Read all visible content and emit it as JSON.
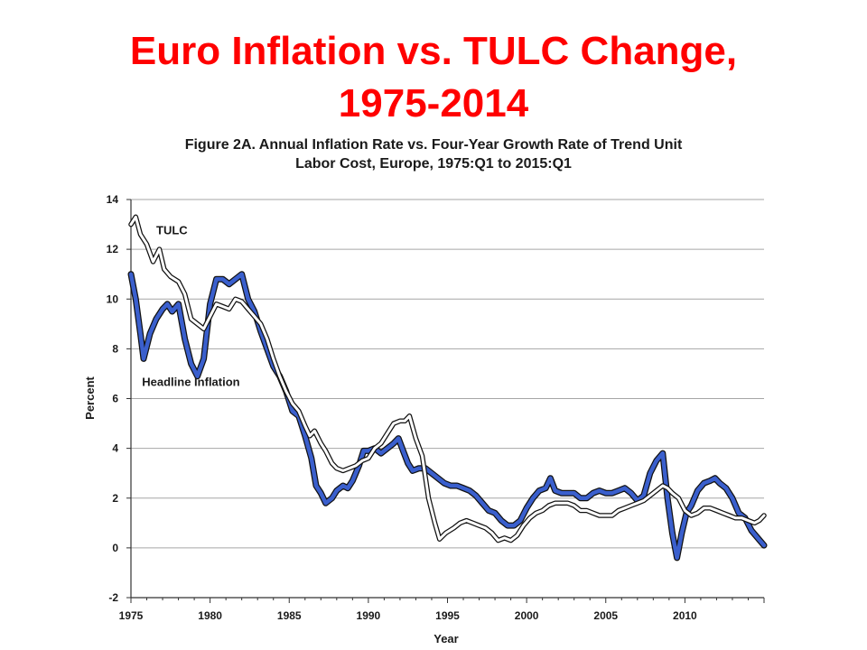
{
  "slide": {
    "title_line1": "Euro Inflation vs. TULC Change,",
    "title_line2": "1975-2014"
  },
  "chart_data": {
    "type": "line",
    "title": "Figure 2A. Annual Inflation Rate vs. Four-Year Growth Rate of Trend Unit Labor Cost, Europe, 1975:Q1 to 2015:Q1",
    "title_line1": "Figure 2A. Annual Inflation Rate vs. Four-Year Growth Rate of Trend Unit",
    "title_line2": "Labor Cost, Europe, 1975:Q1 to 2015:Q1",
    "xlabel": "Year",
    "ylabel": "Percent",
    "xlim": [
      1975,
      2015
    ],
    "ylim": [
      -2,
      14
    ],
    "x_ticks": [
      1975,
      1980,
      1985,
      1990,
      1995,
      2000,
      2005,
      2010
    ],
    "y_ticks": [
      -2,
      0,
      2,
      4,
      6,
      8,
      10,
      12,
      14
    ],
    "grid": "horizontal",
    "annotations": [
      {
        "text": "TULC",
        "series": "TULC",
        "x": 1976.6,
        "y": 12.6
      },
      {
        "text": "Headline Inflation",
        "series": "Headline Inflation",
        "x": 1975.7,
        "y": 6.5
      }
    ],
    "series": [
      {
        "name": "Headline Inflation",
        "color": "#3a5fcd",
        "style": "thick blue line with black outline",
        "points": [
          [
            1975.0,
            11.0
          ],
          [
            1975.3,
            10.0
          ],
          [
            1975.6,
            8.6
          ],
          [
            1975.8,
            7.6
          ],
          [
            1976.2,
            8.6
          ],
          [
            1976.6,
            9.2
          ],
          [
            1977.0,
            9.6
          ],
          [
            1977.3,
            9.8
          ],
          [
            1977.6,
            9.5
          ],
          [
            1978.0,
            9.8
          ],
          [
            1978.4,
            8.4
          ],
          [
            1978.8,
            7.4
          ],
          [
            1979.2,
            6.9
          ],
          [
            1979.6,
            7.6
          ],
          [
            1980.0,
            9.8
          ],
          [
            1980.4,
            10.8
          ],
          [
            1980.8,
            10.8
          ],
          [
            1981.2,
            10.6
          ],
          [
            1981.6,
            10.8
          ],
          [
            1982.0,
            11.0
          ],
          [
            1982.4,
            10.0
          ],
          [
            1982.8,
            9.5
          ],
          [
            1983.2,
            8.7
          ],
          [
            1983.6,
            8.0
          ],
          [
            1984.0,
            7.3
          ],
          [
            1984.4,
            6.9
          ],
          [
            1984.8,
            6.3
          ],
          [
            1985.2,
            5.5
          ],
          [
            1985.6,
            5.3
          ],
          [
            1986.0,
            4.5
          ],
          [
            1986.4,
            3.6
          ],
          [
            1986.7,
            2.5
          ],
          [
            1987.0,
            2.2
          ],
          [
            1987.3,
            1.8
          ],
          [
            1987.7,
            2.0
          ],
          [
            1988.0,
            2.3
          ],
          [
            1988.4,
            2.5
          ],
          [
            1988.7,
            2.4
          ],
          [
            1989.0,
            2.7
          ],
          [
            1989.4,
            3.3
          ],
          [
            1989.7,
            3.9
          ],
          [
            1990.0,
            3.9
          ],
          [
            1990.4,
            4.0
          ],
          [
            1990.8,
            3.8
          ],
          [
            1991.2,
            4.0
          ],
          [
            1991.6,
            4.2
          ],
          [
            1991.9,
            4.4
          ],
          [
            1992.2,
            3.9
          ],
          [
            1992.5,
            3.4
          ],
          [
            1992.8,
            3.1
          ],
          [
            1993.2,
            3.2
          ],
          [
            1993.6,
            3.2
          ],
          [
            1994.0,
            3.0
          ],
          [
            1994.4,
            2.8
          ],
          [
            1994.8,
            2.6
          ],
          [
            1995.2,
            2.5
          ],
          [
            1995.6,
            2.5
          ],
          [
            1996.0,
            2.4
          ],
          [
            1996.4,
            2.3
          ],
          [
            1996.8,
            2.1
          ],
          [
            1997.2,
            1.8
          ],
          [
            1997.6,
            1.5
          ],
          [
            1998.0,
            1.4
          ],
          [
            1998.4,
            1.1
          ],
          [
            1998.8,
            0.9
          ],
          [
            1999.2,
            0.9
          ],
          [
            1999.6,
            1.1
          ],
          [
            2000.0,
            1.6
          ],
          [
            2000.4,
            2.0
          ],
          [
            2000.8,
            2.3
          ],
          [
            2001.2,
            2.4
          ],
          [
            2001.5,
            2.8
          ],
          [
            2001.8,
            2.3
          ],
          [
            2002.2,
            2.2
          ],
          [
            2002.6,
            2.2
          ],
          [
            2003.0,
            2.2
          ],
          [
            2003.4,
            2.0
          ],
          [
            2003.8,
            2.0
          ],
          [
            2004.2,
            2.2
          ],
          [
            2004.6,
            2.3
          ],
          [
            2005.0,
            2.2
          ],
          [
            2005.4,
            2.2
          ],
          [
            2005.8,
            2.3
          ],
          [
            2006.2,
            2.4
          ],
          [
            2006.6,
            2.2
          ],
          [
            2007.0,
            1.9
          ],
          [
            2007.4,
            2.1
          ],
          [
            2007.8,
            3.0
          ],
          [
            2008.2,
            3.5
          ],
          [
            2008.6,
            3.8
          ],
          [
            2008.9,
            2.0
          ],
          [
            2009.2,
            0.6
          ],
          [
            2009.5,
            -0.4
          ],
          [
            2009.8,
            0.6
          ],
          [
            2010.1,
            1.4
          ],
          [
            2010.4,
            1.7
          ],
          [
            2010.8,
            2.3
          ],
          [
            2011.2,
            2.6
          ],
          [
            2011.6,
            2.7
          ],
          [
            2011.9,
            2.8
          ],
          [
            2012.2,
            2.6
          ],
          [
            2012.6,
            2.4
          ],
          [
            2013.0,
            2.0
          ],
          [
            2013.4,
            1.4
          ],
          [
            2013.8,
            1.2
          ],
          [
            2014.2,
            0.7
          ],
          [
            2014.6,
            0.4
          ],
          [
            2015.0,
            0.1
          ]
        ]
      },
      {
        "name": "TULC",
        "color": "#ffffff",
        "style": "white line with black outline",
        "points": [
          [
            1975.0,
            13.0
          ],
          [
            1975.3,
            13.3
          ],
          [
            1975.6,
            12.6
          ],
          [
            1976.0,
            12.2
          ],
          [
            1976.4,
            11.5
          ],
          [
            1976.8,
            12.0
          ],
          [
            1977.1,
            11.2
          ],
          [
            1977.5,
            10.9
          ],
          [
            1978.0,
            10.7
          ],
          [
            1978.4,
            10.2
          ],
          [
            1978.8,
            9.2
          ],
          [
            1979.2,
            9.0
          ],
          [
            1979.6,
            8.8
          ],
          [
            1980.0,
            9.3
          ],
          [
            1980.4,
            9.8
          ],
          [
            1980.8,
            9.7
          ],
          [
            1981.2,
            9.6
          ],
          [
            1981.6,
            10.0
          ],
          [
            1982.0,
            9.9
          ],
          [
            1982.4,
            9.6
          ],
          [
            1982.8,
            9.3
          ],
          [
            1983.2,
            9.0
          ],
          [
            1983.6,
            8.4
          ],
          [
            1984.0,
            7.6
          ],
          [
            1984.4,
            6.9
          ],
          [
            1984.8,
            6.3
          ],
          [
            1985.2,
            5.8
          ],
          [
            1985.6,
            5.5
          ],
          [
            1986.0,
            4.9
          ],
          [
            1986.3,
            4.5
          ],
          [
            1986.6,
            4.7
          ],
          [
            1987.0,
            4.2
          ],
          [
            1987.3,
            3.9
          ],
          [
            1987.7,
            3.4
          ],
          [
            1988.0,
            3.2
          ],
          [
            1988.4,
            3.1
          ],
          [
            1988.8,
            3.2
          ],
          [
            1989.2,
            3.3
          ],
          [
            1989.6,
            3.5
          ],
          [
            1990.0,
            3.6
          ],
          [
            1990.4,
            4.0
          ],
          [
            1990.8,
            4.2
          ],
          [
            1991.2,
            4.6
          ],
          [
            1991.6,
            5.0
          ],
          [
            1992.0,
            5.1
          ],
          [
            1992.3,
            5.1
          ],
          [
            1992.6,
            5.3
          ],
          [
            1993.0,
            4.4
          ],
          [
            1993.4,
            3.7
          ],
          [
            1993.8,
            2.0
          ],
          [
            1994.2,
            1.0
          ],
          [
            1994.5,
            0.35
          ],
          [
            1994.9,
            0.6
          ],
          [
            1995.4,
            0.8
          ],
          [
            1995.8,
            1.0
          ],
          [
            1996.2,
            1.1
          ],
          [
            1996.6,
            1.0
          ],
          [
            1997.0,
            0.9
          ],
          [
            1997.4,
            0.8
          ],
          [
            1997.8,
            0.6
          ],
          [
            1998.2,
            0.3
          ],
          [
            1998.6,
            0.4
          ],
          [
            1999.0,
            0.3
          ],
          [
            1999.4,
            0.5
          ],
          [
            1999.8,
            0.9
          ],
          [
            2000.2,
            1.2
          ],
          [
            2000.6,
            1.4
          ],
          [
            2001.0,
            1.5
          ],
          [
            2001.4,
            1.7
          ],
          [
            2001.8,
            1.8
          ],
          [
            2002.2,
            1.8
          ],
          [
            2002.6,
            1.8
          ],
          [
            2003.0,
            1.7
          ],
          [
            2003.4,
            1.5
          ],
          [
            2003.8,
            1.5
          ],
          [
            2004.2,
            1.4
          ],
          [
            2004.6,
            1.3
          ],
          [
            2005.0,
            1.3
          ],
          [
            2005.4,
            1.3
          ],
          [
            2005.8,
            1.5
          ],
          [
            2006.2,
            1.6
          ],
          [
            2006.6,
            1.7
          ],
          [
            2007.0,
            1.8
          ],
          [
            2007.4,
            1.9
          ],
          [
            2007.8,
            2.1
          ],
          [
            2008.2,
            2.3
          ],
          [
            2008.6,
            2.5
          ],
          [
            2008.9,
            2.4
          ],
          [
            2009.2,
            2.2
          ],
          [
            2009.6,
            2.0
          ],
          [
            2010.0,
            1.5
          ],
          [
            2010.4,
            1.3
          ],
          [
            2010.8,
            1.4
          ],
          [
            2011.2,
            1.6
          ],
          [
            2011.6,
            1.6
          ],
          [
            2012.0,
            1.5
          ],
          [
            2012.4,
            1.4
          ],
          [
            2012.8,
            1.3
          ],
          [
            2013.2,
            1.2
          ],
          [
            2013.6,
            1.2
          ],
          [
            2014.0,
            1.1
          ],
          [
            2014.4,
            1.0
          ],
          [
            2014.7,
            1.1
          ],
          [
            2015.0,
            1.3
          ]
        ]
      }
    ]
  }
}
